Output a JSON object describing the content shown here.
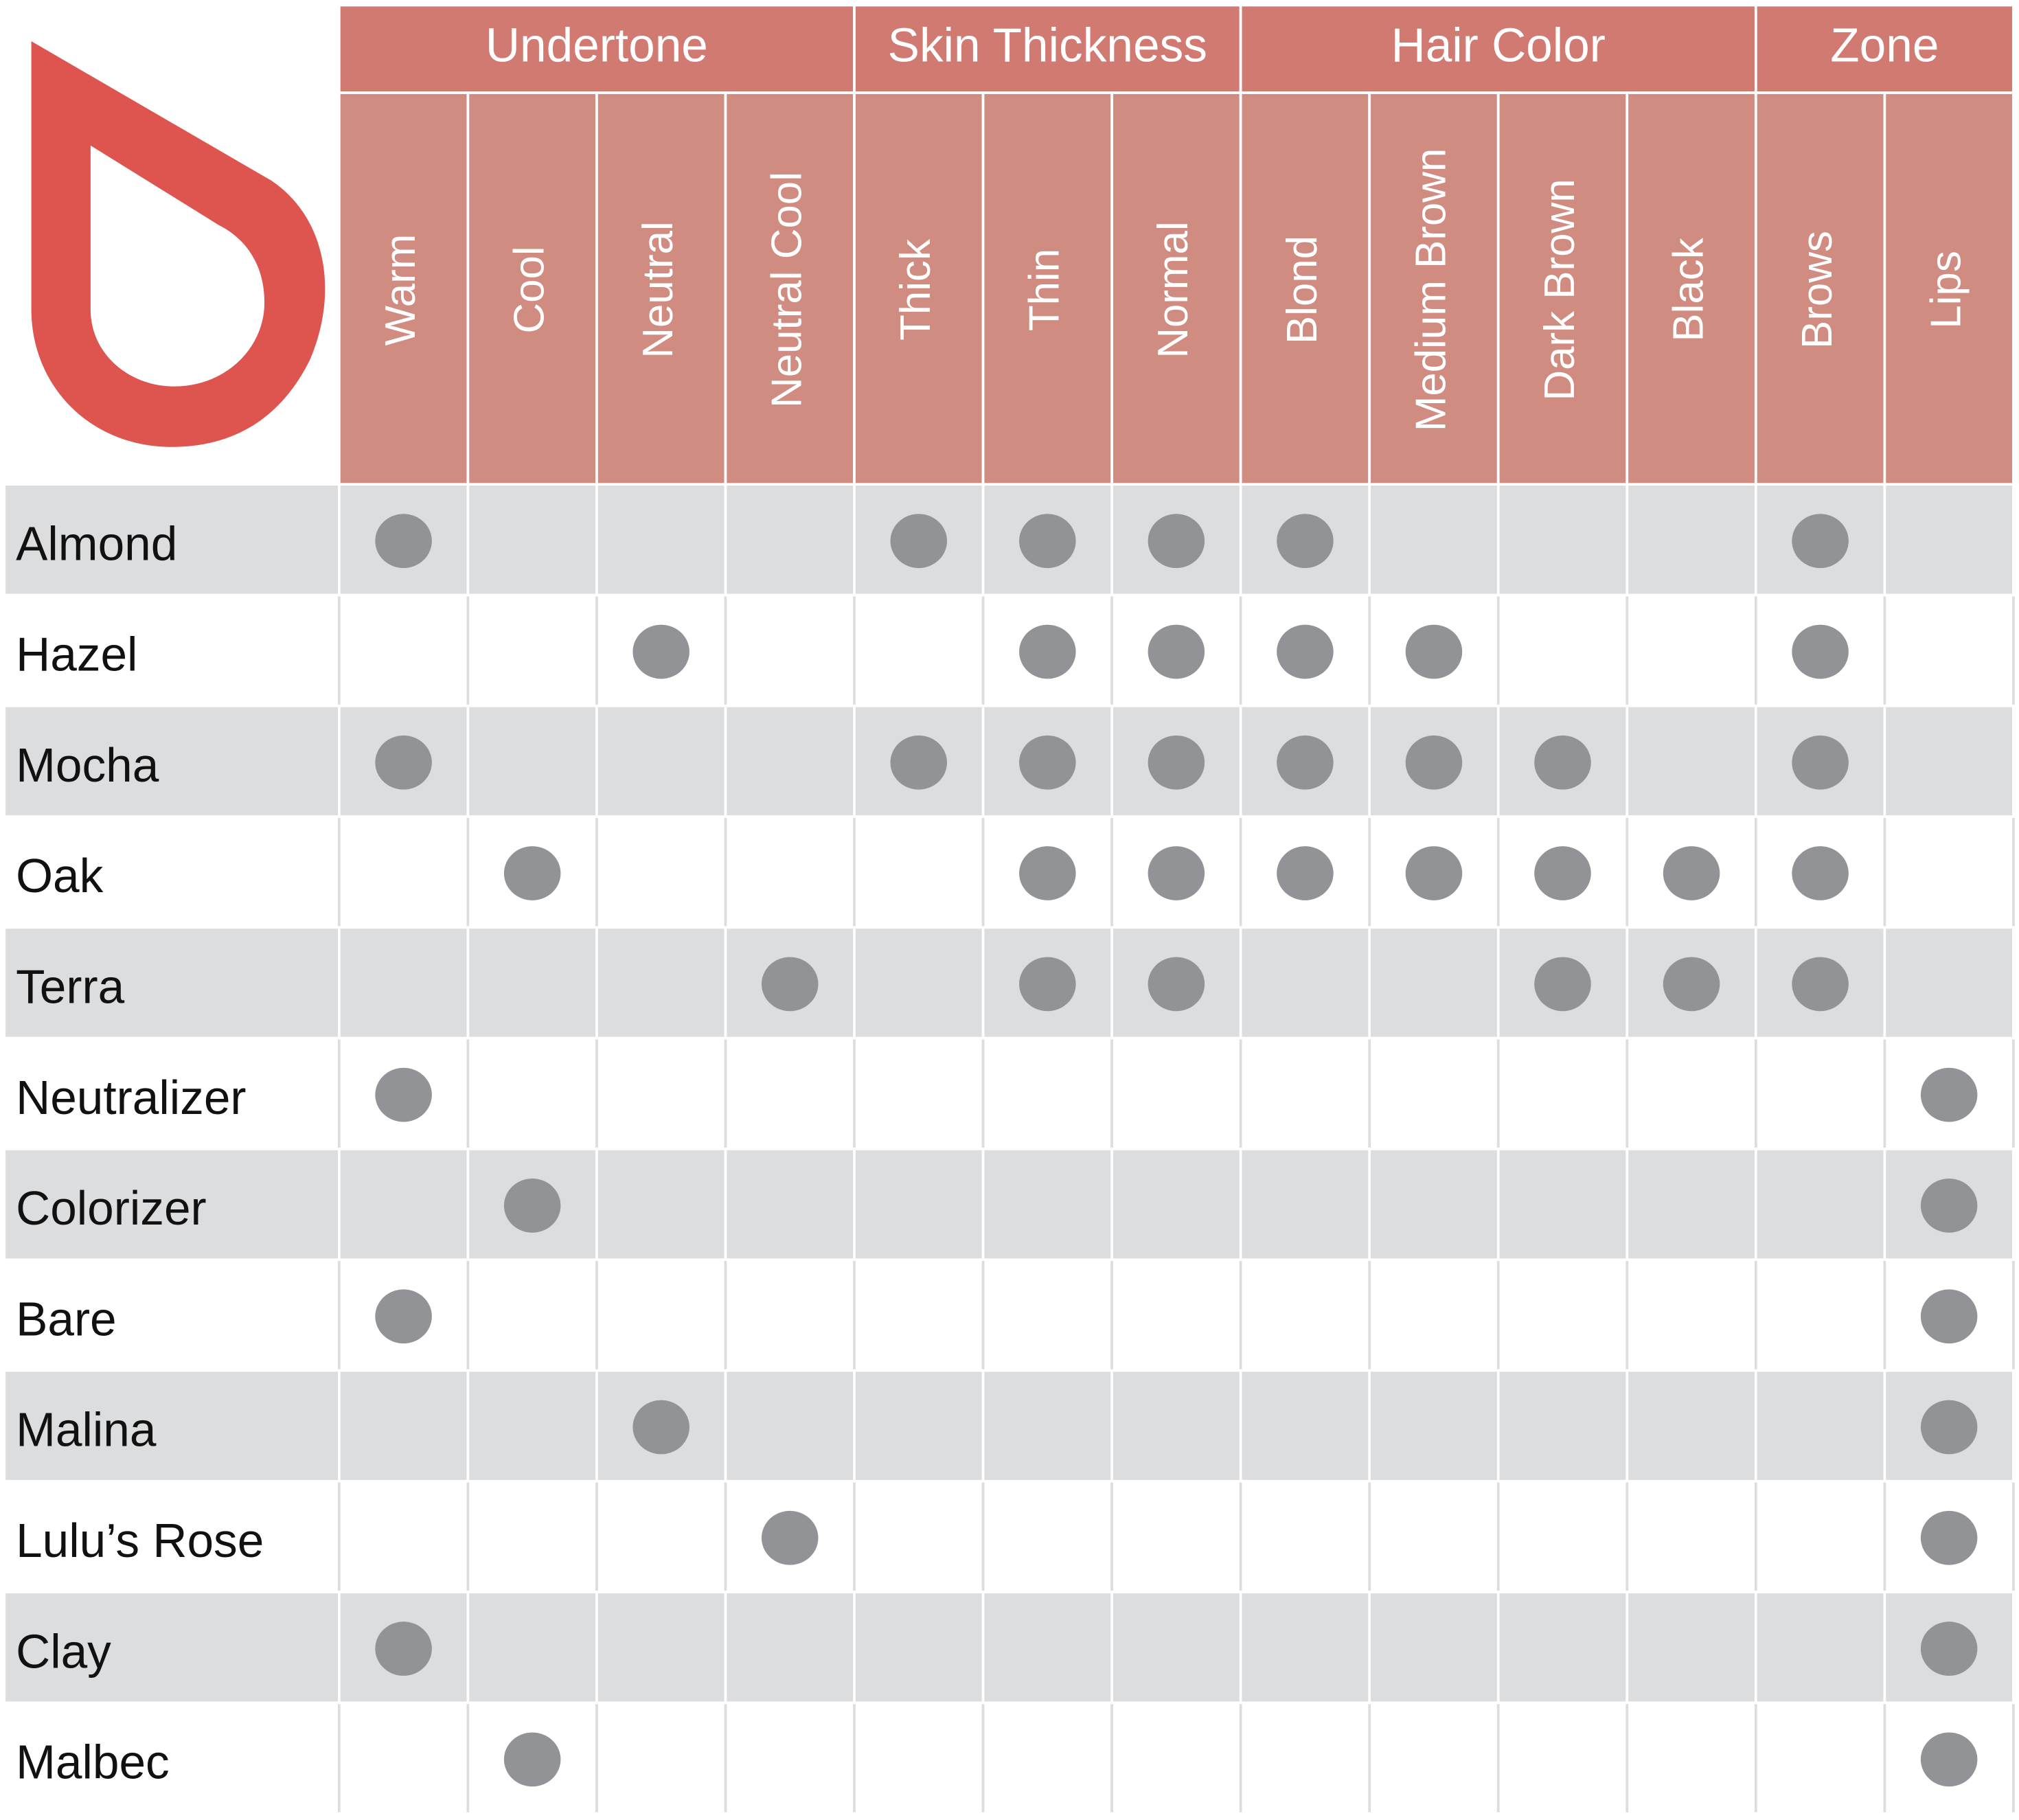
{
  "header": {
    "groups": [
      {
        "label": "Undertone",
        "columns": [
          "Warm",
          "Cool",
          "Neutral",
          "Neutral Cool"
        ]
      },
      {
        "label": "Skin Thickness",
        "columns": [
          "Thick",
          "Thin",
          "Normal"
        ]
      },
      {
        "label": "Hair Color",
        "columns": [
          "Blond",
          "Medium Brown",
          "Dark Brown",
          "Black"
        ]
      },
      {
        "label": "Zone",
        "columns": [
          "Brows",
          "Lips"
        ]
      }
    ]
  },
  "table": {
    "rows": [
      {
        "name": "Almond",
        "marks": [
          true,
          false,
          false,
          false,
          true,
          true,
          true,
          true,
          false,
          false,
          false,
          true,
          false
        ]
      },
      {
        "name": "Hazel",
        "marks": [
          false,
          false,
          true,
          false,
          false,
          true,
          true,
          true,
          true,
          false,
          false,
          true,
          false
        ]
      },
      {
        "name": "Mocha",
        "marks": [
          true,
          false,
          false,
          false,
          true,
          true,
          true,
          true,
          true,
          true,
          false,
          true,
          false
        ]
      },
      {
        "name": "Oak",
        "marks": [
          false,
          true,
          false,
          false,
          false,
          true,
          true,
          true,
          true,
          true,
          true,
          true,
          false
        ]
      },
      {
        "name": "Terra",
        "marks": [
          false,
          false,
          false,
          true,
          false,
          true,
          true,
          false,
          false,
          true,
          true,
          true,
          false
        ]
      },
      {
        "name": "Neutralizer",
        "marks": [
          true,
          false,
          false,
          false,
          false,
          false,
          false,
          false,
          false,
          false,
          false,
          false,
          true
        ]
      },
      {
        "name": "Colorizer",
        "marks": [
          false,
          true,
          false,
          false,
          false,
          false,
          false,
          false,
          false,
          false,
          false,
          false,
          true
        ]
      },
      {
        "name": "Bare",
        "marks": [
          true,
          false,
          false,
          false,
          false,
          false,
          false,
          false,
          false,
          false,
          false,
          false,
          true
        ]
      },
      {
        "name": "Malina",
        "marks": [
          false,
          false,
          true,
          false,
          false,
          false,
          false,
          false,
          false,
          false,
          false,
          false,
          true
        ]
      },
      {
        "name": "Lulu’s Rose",
        "marks": [
          false,
          false,
          false,
          true,
          false,
          false,
          false,
          false,
          false,
          false,
          false,
          false,
          true
        ]
      },
      {
        "name": "Clay",
        "marks": [
          true,
          false,
          false,
          false,
          false,
          false,
          false,
          false,
          false,
          false,
          false,
          false,
          true
        ]
      },
      {
        "name": "Malbec",
        "marks": [
          false,
          true,
          false,
          false,
          false,
          false,
          false,
          false,
          false,
          false,
          false,
          false,
          true
        ]
      }
    ]
  }
}
